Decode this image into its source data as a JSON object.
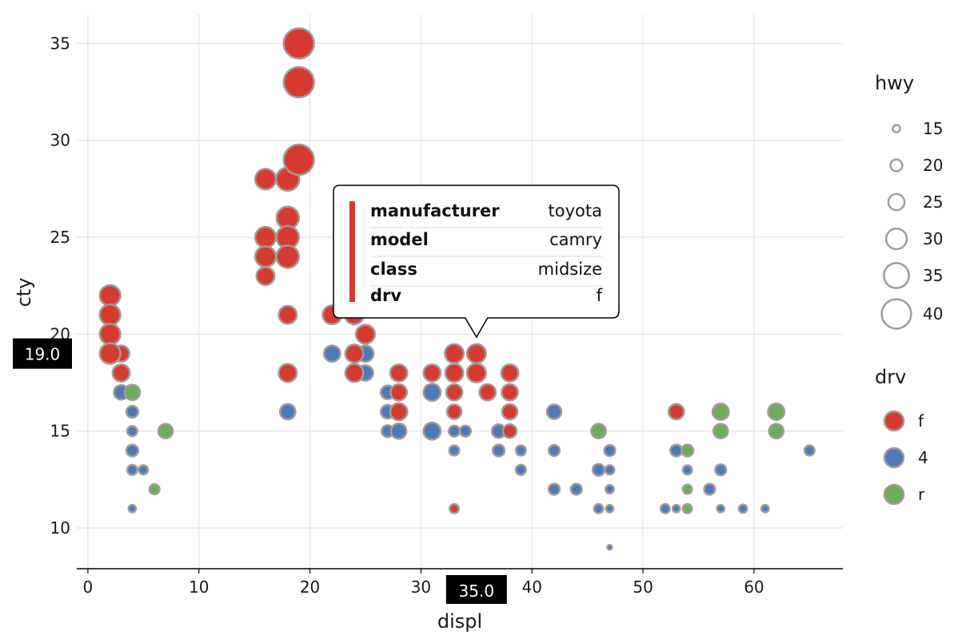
{
  "chart_data": {
    "type": "scatter",
    "xlabel": "displ",
    "ylabel": "cty",
    "xlim": [
      -1,
      68
    ],
    "ylim": [
      7.9,
      36.5
    ],
    "x_ticks": [
      0,
      10,
      20,
      30,
      40,
      50,
      60
    ],
    "y_ticks": [
      10,
      15,
      20,
      25,
      30,
      35
    ],
    "grid": true,
    "size_legend": {
      "title": "hwy",
      "values": [
        15,
        20,
        25,
        30,
        35,
        40
      ]
    },
    "color_legend": {
      "title": "drv",
      "entries": [
        {
          "label": "f",
          "color": "#d73a2f"
        },
        {
          "label": "4",
          "color": "#4c7ab8"
        },
        {
          "label": "r",
          "color": "#6aaf55"
        }
      ]
    },
    "stroke_color": "#a39a9a",
    "points": [
      {
        "x": 2,
        "y": 22,
        "hwy": 30,
        "drv": "f"
      },
      {
        "x": 2,
        "y": 21,
        "hwy": 30,
        "drv": "f"
      },
      {
        "x": 2,
        "y": 20,
        "hwy": 30,
        "drv": "f"
      },
      {
        "x": 2,
        "y": 19,
        "hwy": 30,
        "drv": "f"
      },
      {
        "x": 3,
        "y": 19,
        "hwy": 25,
        "drv": "f"
      },
      {
        "x": 3,
        "y": 18,
        "hwy": 26,
        "drv": "f"
      },
      {
        "x": 3,
        "y": 17,
        "hwy": 23,
        "drv": "4"
      },
      {
        "x": 4,
        "y": 17,
        "hwy": 24,
        "drv": "r"
      },
      {
        "x": 4,
        "y": 16,
        "hwy": 20,
        "drv": "4"
      },
      {
        "x": 4,
        "y": 15,
        "hwy": 18,
        "drv": "4"
      },
      {
        "x": 4,
        "y": 14,
        "hwy": 20,
        "drv": "4"
      },
      {
        "x": 4,
        "y": 13,
        "hwy": 18,
        "drv": "4"
      },
      {
        "x": 4,
        "y": 11,
        "hwy": 15,
        "drv": "4"
      },
      {
        "x": 5,
        "y": 13,
        "hwy": 17,
        "drv": "4"
      },
      {
        "x": 6,
        "y": 12,
        "hwy": 18,
        "drv": "r"
      },
      {
        "x": 7,
        "y": 15,
        "hwy": 23,
        "drv": "r"
      },
      {
        "x": 16,
        "y": 28,
        "hwy": 30,
        "drv": "f"
      },
      {
        "x": 16,
        "y": 25,
        "hwy": 30,
        "drv": "f"
      },
      {
        "x": 16,
        "y": 24,
        "hwy": 30,
        "drv": "f"
      },
      {
        "x": 16,
        "y": 23,
        "hwy": 27,
        "drv": "f"
      },
      {
        "x": 18,
        "y": 28,
        "hwy": 33,
        "drv": "f"
      },
      {
        "x": 18,
        "y": 26,
        "hwy": 32,
        "drv": "f"
      },
      {
        "x": 18,
        "y": 25,
        "hwy": 32,
        "drv": "f"
      },
      {
        "x": 18,
        "y": 24,
        "hwy": 32,
        "drv": "f"
      },
      {
        "x": 18,
        "y": 21,
        "hwy": 27,
        "drv": "f"
      },
      {
        "x": 18,
        "y": 18,
        "hwy": 27,
        "drv": "f"
      },
      {
        "x": 18,
        "y": 16,
        "hwy": 24,
        "drv": "4"
      },
      {
        "x": 19,
        "y": 35,
        "hwy": 41,
        "drv": "f"
      },
      {
        "x": 19,
        "y": 33,
        "hwy": 41,
        "drv": "f"
      },
      {
        "x": 19,
        "y": 29,
        "hwy": 41,
        "drv": "f"
      },
      {
        "x": 22,
        "y": 21,
        "hwy": 28,
        "drv": "f"
      },
      {
        "x": 22,
        "y": 19,
        "hwy": 25,
        "drv": "4"
      },
      {
        "x": 24,
        "y": 21,
        "hwy": 28,
        "drv": "f"
      },
      {
        "x": 24,
        "y": 19,
        "hwy": 27,
        "drv": "f"
      },
      {
        "x": 24,
        "y": 18,
        "hwy": 27,
        "drv": "f"
      },
      {
        "x": 25,
        "y": 20,
        "hwy": 28,
        "drv": "f"
      },
      {
        "x": 25,
        "y": 19,
        "hwy": 25,
        "drv": "4"
      },
      {
        "x": 25,
        "y": 18,
        "hwy": 24,
        "drv": "4"
      },
      {
        "x": 27,
        "y": 17,
        "hwy": 22,
        "drv": "4"
      },
      {
        "x": 27,
        "y": 16,
        "hwy": 22,
        "drv": "4"
      },
      {
        "x": 27,
        "y": 15,
        "hwy": 20,
        "drv": "4"
      },
      {
        "x": 28,
        "y": 18,
        "hwy": 26,
        "drv": "f"
      },
      {
        "x": 28,
        "y": 17,
        "hwy": 25,
        "drv": "f"
      },
      {
        "x": 28,
        "y": 16,
        "hwy": 26,
        "drv": "f"
      },
      {
        "x": 28,
        "y": 15,
        "hwy": 24,
        "drv": "4"
      },
      {
        "x": 31,
        "y": 18,
        "hwy": 26,
        "drv": "f"
      },
      {
        "x": 31,
        "y": 17,
        "hwy": 26,
        "drv": "4"
      },
      {
        "x": 31,
        "y": 15,
        "hwy": 26,
        "drv": "4"
      },
      {
        "x": 33,
        "y": 19,
        "hwy": 28,
        "drv": "f"
      },
      {
        "x": 33,
        "y": 18,
        "hwy": 27,
        "drv": "f"
      },
      {
        "x": 33,
        "y": 17,
        "hwy": 25,
        "drv": "f"
      },
      {
        "x": 33,
        "y": 16,
        "hwy": 23,
        "drv": "f"
      },
      {
        "x": 33,
        "y": 15,
        "hwy": 19,
        "drv": "4"
      },
      {
        "x": 33,
        "y": 14,
        "hwy": 18,
        "drv": "4"
      },
      {
        "x": 33,
        "y": 11,
        "hwy": 17,
        "drv": "f"
      },
      {
        "x": 34,
        "y": 15,
        "hwy": 19,
        "drv": "4"
      },
      {
        "x": 35,
        "y": 19,
        "hwy": 28,
        "drv": "f"
      },
      {
        "x": 35,
        "y": 18,
        "hwy": 28,
        "drv": "f"
      },
      {
        "x": 36,
        "y": 17,
        "hwy": 25,
        "drv": "f"
      },
      {
        "x": 37,
        "y": 15,
        "hwy": 22,
        "drv": "4"
      },
      {
        "x": 37,
        "y": 14,
        "hwy": 20,
        "drv": "4"
      },
      {
        "x": 38,
        "y": 18,
        "hwy": 26,
        "drv": "f"
      },
      {
        "x": 38,
        "y": 17,
        "hwy": 25,
        "drv": "f"
      },
      {
        "x": 38,
        "y": 16,
        "hwy": 24,
        "drv": "f"
      },
      {
        "x": 38,
        "y": 15,
        "hwy": 22,
        "drv": "f"
      },
      {
        "x": 39,
        "y": 14,
        "hwy": 18,
        "drv": "4"
      },
      {
        "x": 39,
        "y": 13,
        "hwy": 18,
        "drv": "4"
      },
      {
        "x": 42,
        "y": 16,
        "hwy": 23,
        "drv": "4"
      },
      {
        "x": 42,
        "y": 14,
        "hwy": 19,
        "drv": "4"
      },
      {
        "x": 42,
        "y": 12,
        "hwy": 19,
        "drv": "4"
      },
      {
        "x": 44,
        "y": 12,
        "hwy": 19,
        "drv": "4"
      },
      {
        "x": 46,
        "y": 15,
        "hwy": 23,
        "drv": "r"
      },
      {
        "x": 46,
        "y": 13,
        "hwy": 20,
        "drv": "4"
      },
      {
        "x": 46,
        "y": 11,
        "hwy": 17,
        "drv": "4"
      },
      {
        "x": 47,
        "y": 14,
        "hwy": 19,
        "drv": "4"
      },
      {
        "x": 47,
        "y": 13,
        "hwy": 17,
        "drv": "4"
      },
      {
        "x": 47,
        "y": 12,
        "hwy": 16,
        "drv": "4"
      },
      {
        "x": 47,
        "y": 11,
        "hwy": 15,
        "drv": "4"
      },
      {
        "x": 47,
        "y": 9,
        "hwy": 12,
        "drv": "4"
      },
      {
        "x": 52,
        "y": 11,
        "hwy": 17,
        "drv": "4"
      },
      {
        "x": 53,
        "y": 16,
        "hwy": 24,
        "drv": "f"
      },
      {
        "x": 53,
        "y": 14,
        "hwy": 20,
        "drv": "4"
      },
      {
        "x": 53,
        "y": 11,
        "hwy": 15,
        "drv": "4"
      },
      {
        "x": 54,
        "y": 14,
        "hwy": 20,
        "drv": "r"
      },
      {
        "x": 54,
        "y": 13,
        "hwy": 17,
        "drv": "4"
      },
      {
        "x": 54,
        "y": 12,
        "hwy": 17,
        "drv": "r"
      },
      {
        "x": 54,
        "y": 11,
        "hwy": 17,
        "drv": "r"
      },
      {
        "x": 56,
        "y": 12,
        "hwy": 19,
        "drv": "4"
      },
      {
        "x": 57,
        "y": 16,
        "hwy": 25,
        "drv": "r"
      },
      {
        "x": 57,
        "y": 15,
        "hwy": 23,
        "drv": "r"
      },
      {
        "x": 57,
        "y": 13,
        "hwy": 19,
        "drv": "4"
      },
      {
        "x": 57,
        "y": 11,
        "hwy": 15,
        "drv": "4"
      },
      {
        "x": 59,
        "y": 11,
        "hwy": 16,
        "drv": "4"
      },
      {
        "x": 61,
        "y": 11,
        "hwy": 15,
        "drv": "4"
      },
      {
        "x": 62,
        "y": 16,
        "hwy": 25,
        "drv": "r"
      },
      {
        "x": 62,
        "y": 15,
        "hwy": 23,
        "drv": "r"
      },
      {
        "x": 65,
        "y": 14,
        "hwy": 18,
        "drv": "4"
      }
    ],
    "hover": {
      "x_marker": "35.0",
      "y_marker": "19.0",
      "point": {
        "x": 35,
        "y": 19
      },
      "color": "#d73a2f",
      "tooltip": [
        {
          "key": "manufacturer",
          "value": "toyota"
        },
        {
          "key": "model",
          "value": "camry"
        },
        {
          "key": "class",
          "value": "midsize"
        },
        {
          "key": "drv",
          "value": "f"
        }
      ]
    }
  }
}
